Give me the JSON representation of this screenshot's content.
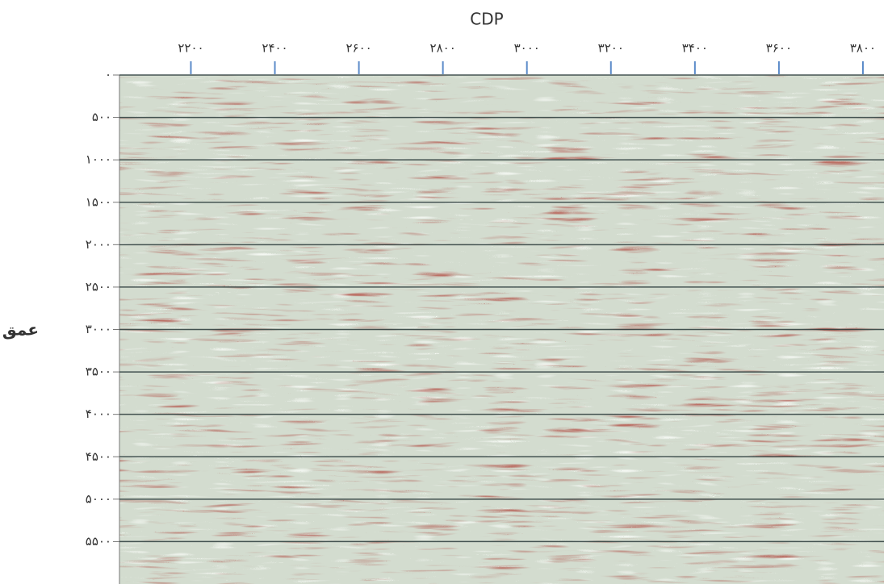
{
  "chart_data": {
    "type": "image",
    "title": "CDP",
    "y_label": "عمق",
    "xlim": [
      2030,
      3850
    ],
    "xticks": [
      {
        "value": 2200,
        "label": "۲۲۰۰"
      },
      {
        "value": 2400,
        "label": "۲۴۰۰"
      },
      {
        "value": 2600,
        "label": "۲۶۰۰"
      },
      {
        "value": 2800,
        "label": "۲۸۰۰"
      },
      {
        "value": 3000,
        "label": "۳۰۰۰"
      },
      {
        "value": 3200,
        "label": "۳۲۰۰"
      },
      {
        "value": 3400,
        "label": "۳۴۰۰"
      },
      {
        "value": 3600,
        "label": "۳۶۰۰"
      },
      {
        "value": 3800,
        "label": "۳۸۰۰"
      }
    ],
    "ylim": [
      0,
      6000
    ],
    "yreverse": true,
    "yticks": [
      {
        "value": 0,
        "label": "۰"
      },
      {
        "value": 500,
        "label": "۵۰۰"
      },
      {
        "value": 1000,
        "label": "۱۰۰۰"
      },
      {
        "value": 1500,
        "label": "۱۵۰۰"
      },
      {
        "value": 2000,
        "label": "۲۰۰۰"
      },
      {
        "value": 2500,
        "label": "۲۵۰۰"
      },
      {
        "value": 3000,
        "label": "۳۰۰۰"
      },
      {
        "value": 3500,
        "label": "۳۵۰۰"
      },
      {
        "value": 4000,
        "label": "۴۰۰۰"
      },
      {
        "value": 4500,
        "label": "۴۵۰۰"
      },
      {
        "value": 5000,
        "label": "۵۰۰۰"
      },
      {
        "value": 5500,
        "label": "۵۵۰۰"
      }
    ],
    "grid": true
  }
}
